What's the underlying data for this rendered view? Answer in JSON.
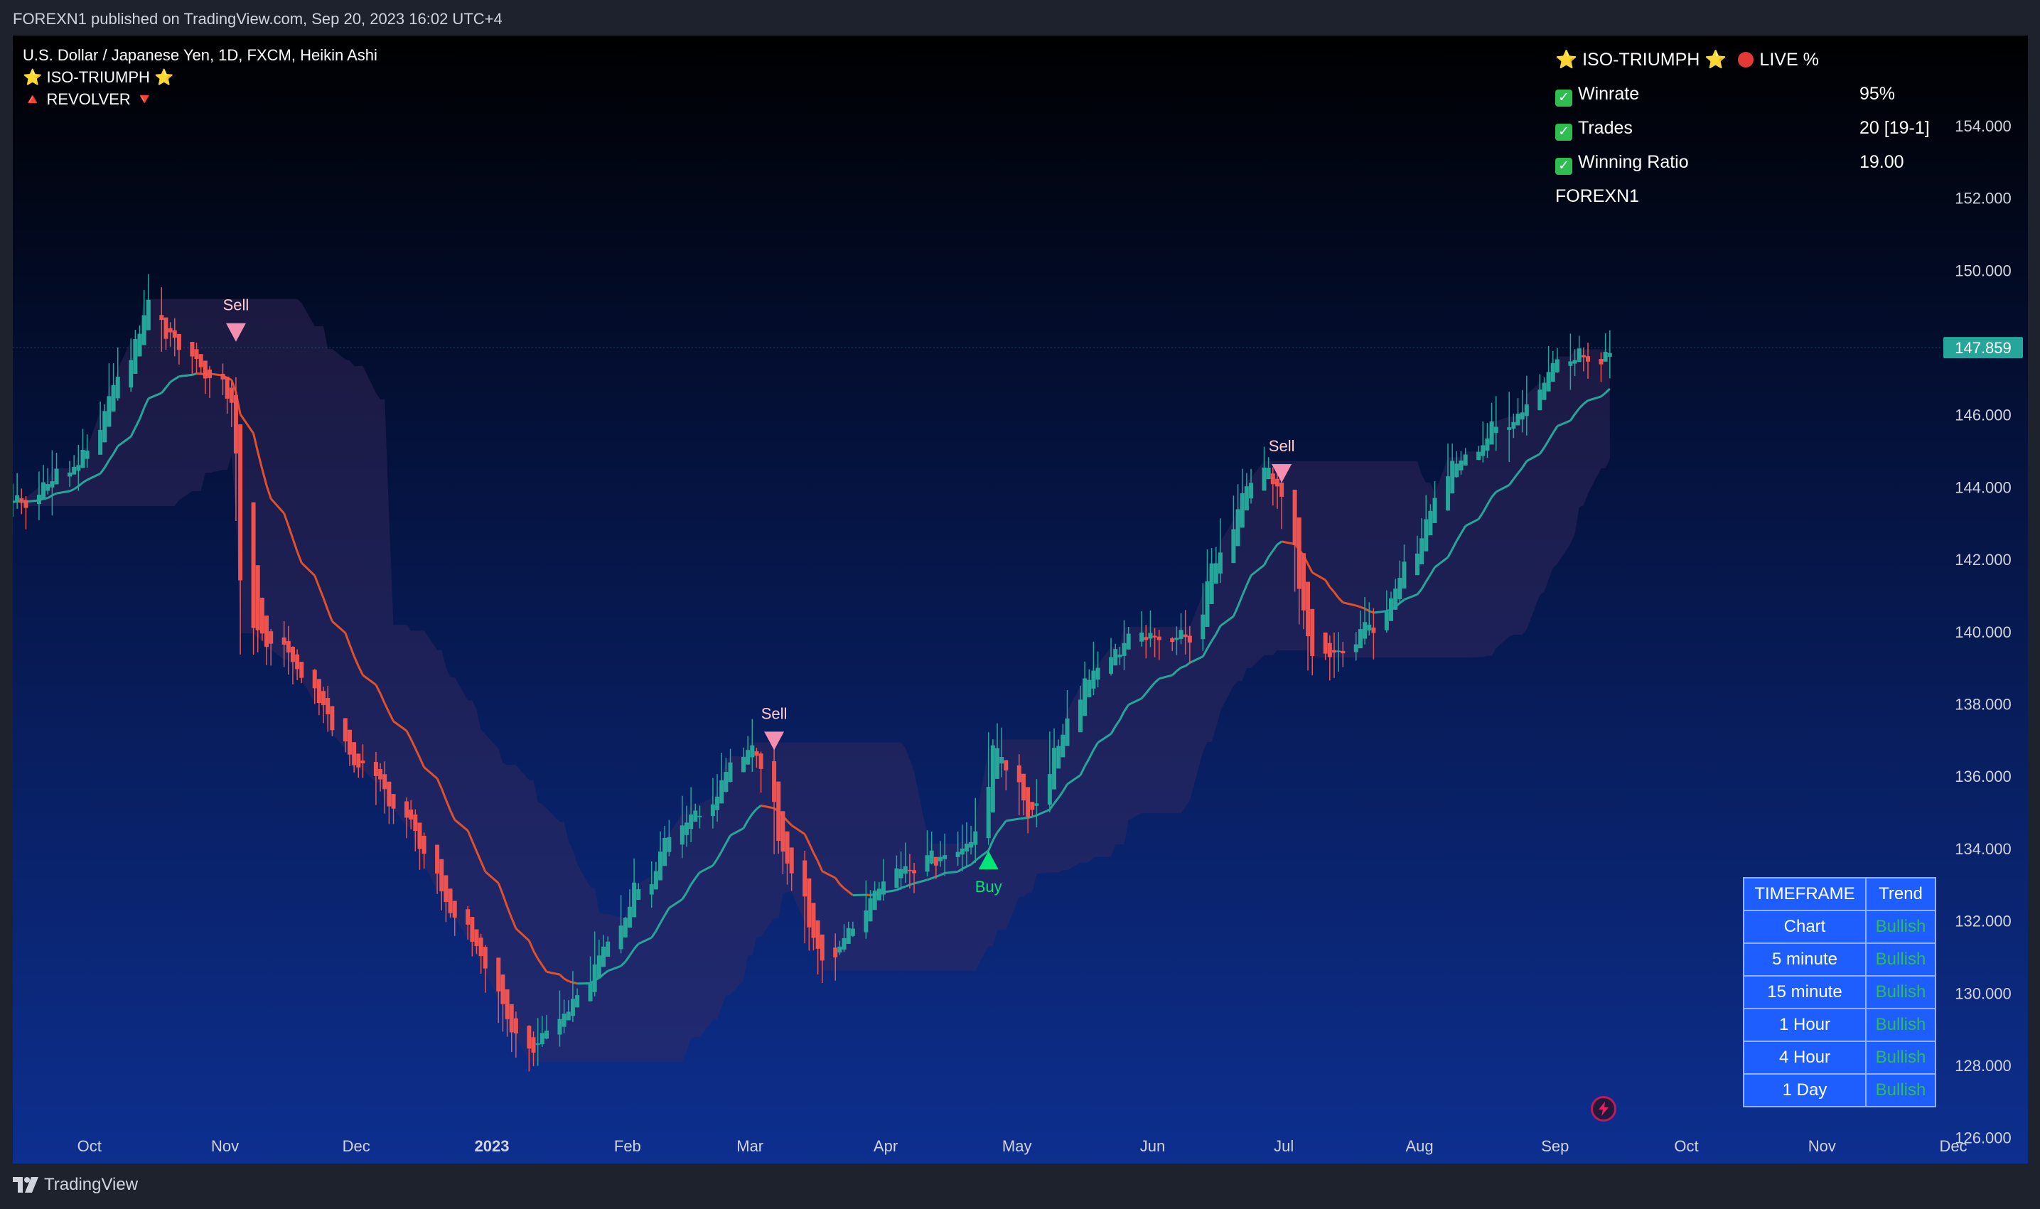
{
  "header": {
    "published": "FOREXN1 published on TradingView.com, Sep 20, 2023 16:02 UTC+4"
  },
  "footer": {
    "brand": "TradingView"
  },
  "legend": {
    "symbol": "U.S. Dollar / Japanese Yen, 1D, FXCM, Heikin Ashi",
    "indicator1": "⭐ ISO-TRIUMPH ⭐",
    "indicator2": "🔺 REVOLVER 🔻"
  },
  "stats": {
    "title": "⭐ ISO-TRIUMPH ⭐",
    "live": "LIVE %",
    "rows": [
      {
        "label": "Winrate",
        "value": "95%"
      },
      {
        "label": "Trades",
        "value": "20 [19-1]"
      },
      {
        "label": "Winning Ratio",
        "value": "19.00"
      }
    ],
    "author": "FOREXN1"
  },
  "trend_table": {
    "headers": [
      "TIMEFRAME",
      "Trend"
    ],
    "rows": [
      {
        "tf": "Chart",
        "trend": "Bullish"
      },
      {
        "tf": "5 minute",
        "trend": "Bullish"
      },
      {
        "tf": "15 minute",
        "trend": "Bullish"
      },
      {
        "tf": "1 Hour",
        "trend": "Bullish"
      },
      {
        "tf": "4 Hour",
        "trend": "Bullish"
      },
      {
        "tf": "1 Day",
        "trend": "Bullish"
      }
    ]
  },
  "colors": {
    "up": "#26a69a",
    "down": "#ef5350",
    "ema_up": "#26a69a",
    "ema_down": "#e0502a",
    "bg_top": "#000000",
    "bg_bottom": "#0d2f8f",
    "buy": "#00e676",
    "sell": "#f48fb1"
  },
  "chart_data": {
    "type": "candlestick",
    "title": "U.S. Dollar / Japanese Yen, 1D, FXCM, Heikin Ashi",
    "ylim": [
      125,
      156
    ],
    "y_ticks": [
      "154.000",
      "152.000",
      "150.000",
      "148.000",
      "146.000",
      "144.000",
      "142.000",
      "140.000",
      "138.000",
      "136.000",
      "134.000",
      "132.000",
      "130.000",
      "128.000",
      "126.000"
    ],
    "x_ticks": [
      "Oct",
      "Nov",
      "Dec",
      "2023",
      "Feb",
      "Mar",
      "Apr",
      "May",
      "Jun",
      "Jul",
      "Aug",
      "Sep",
      "Oct",
      "Nov",
      "Dec"
    ],
    "last_price": "147.859",
    "close_path": [
      [
        "2022-09-20",
        143.6
      ],
      [
        "2022-10-05",
        144.7
      ],
      [
        "2022-10-20",
        148.9
      ],
      [
        "2022-10-31",
        147.5
      ],
      [
        "2022-11-09",
        146.4
      ],
      [
        "2022-11-11",
        140.2
      ],
      [
        "2022-11-20",
        139.6
      ],
      [
        "2022-12-05",
        136.8
      ],
      [
        "2022-12-20",
        134.5
      ],
      [
        "2023-01-03",
        131.0
      ],
      [
        "2023-01-16",
        128.3
      ],
      [
        "2023-01-24",
        129.6
      ],
      [
        "2023-01-27",
        130.0
      ],
      [
        "2023-02-03",
        131.5
      ],
      [
        "2023-02-15",
        134.0
      ],
      [
        "2023-03-01",
        136.0
      ],
      [
        "2023-03-08",
        137.1
      ],
      [
        "2023-03-14",
        134.2
      ],
      [
        "2023-03-24",
        130.9
      ],
      [
        "2023-04-03",
        132.6
      ],
      [
        "2023-04-15",
        133.8
      ],
      [
        "2023-04-27",
        134.2
      ],
      [
        "2023-05-02",
        137.0
      ],
      [
        "2023-05-10",
        134.7
      ],
      [
        "2023-05-20",
        138.0
      ],
      [
        "2023-06-01",
        139.8
      ],
      [
        "2023-06-15",
        139.8
      ],
      [
        "2023-06-30",
        144.6
      ],
      [
        "2023-07-06",
        144.2
      ],
      [
        "2023-07-14",
        139.0
      ],
      [
        "2023-07-28",
        140.3
      ],
      [
        "2023-08-04",
        142.0
      ],
      [
        "2023-08-15",
        144.8
      ],
      [
        "2023-08-30",
        146.1
      ],
      [
        "2023-09-06",
        147.2
      ],
      [
        "2023-09-20",
        147.9
      ]
    ],
    "signals": [
      {
        "label": "Sell",
        "date": "2022-11-10",
        "price": 148.3
      },
      {
        "label": "Sell",
        "date": "2023-03-13",
        "price": 137.0
      },
      {
        "label": "Buy",
        "date": "2023-05-01",
        "price": 133.7
      },
      {
        "label": "Sell",
        "date": "2023-07-07",
        "price": 144.4
      }
    ]
  }
}
